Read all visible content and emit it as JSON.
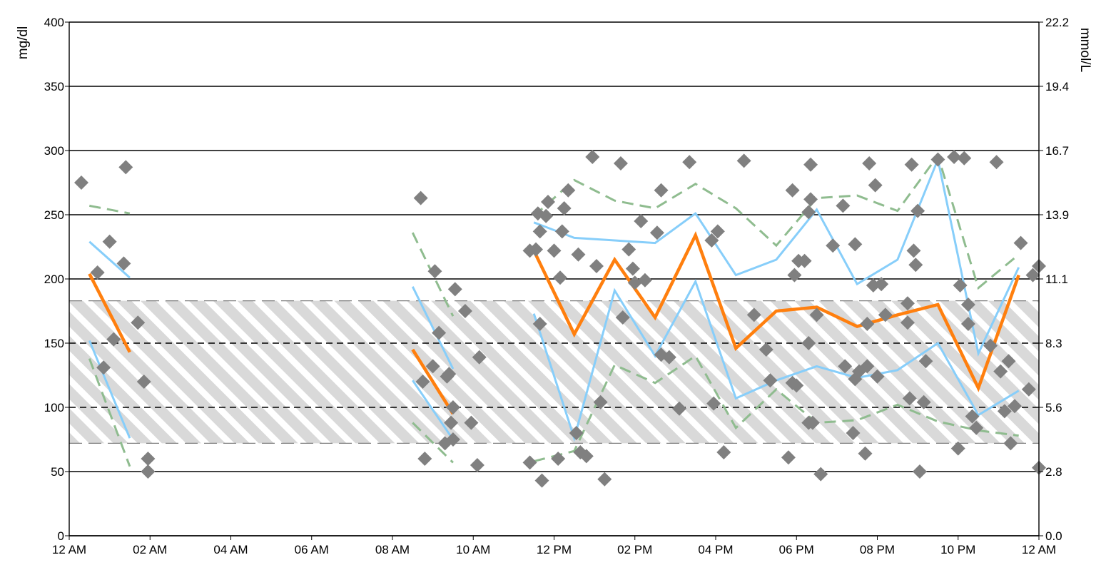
{
  "chart_data": {
    "type": "scatter",
    "left_axis": {
      "label": "mg/dl",
      "ylim": [
        0,
        400
      ],
      "ticks": [
        0,
        50,
        100,
        150,
        200,
        250,
        300,
        350,
        400
      ],
      "tick_labels": [
        "0",
        "50",
        "100",
        "150",
        "200",
        "250",
        "300",
        "350",
        "400"
      ]
    },
    "right_axis": {
      "label": "mmol/L",
      "ticks": [
        0,
        50,
        100,
        150,
        200,
        250,
        300,
        350,
        400
      ],
      "tick_labels": [
        "0.0",
        "2.8",
        "5.6",
        "8.3",
        "11.1",
        "13.9",
        "16.7",
        "19.4",
        "22.2"
      ]
    },
    "x_axis": {
      "xlim": [
        0,
        24
      ],
      "ticks": [
        0,
        2,
        4,
        6,
        8,
        10,
        12,
        14,
        16,
        18,
        20,
        22,
        24
      ],
      "tick_labels": [
        "12 AM",
        "02 AM",
        "04 AM",
        "06 AM",
        "08 AM",
        "10 AM",
        "12 PM",
        "02 PM",
        "04 PM",
        "06 PM",
        "08 PM",
        "10 PM",
        "12 AM"
      ]
    },
    "grid": true,
    "target_range": [
      72,
      183
    ],
    "colors": {
      "median": "#ff7f0e",
      "quartile": "#87cefa",
      "percentile": "#8fbc8f",
      "points": "#808080",
      "band_fill": "#d9d9d9",
      "band_hatch": "#ffffff",
      "band_edge": "#808080"
    },
    "series": [
      {
        "role": "median",
        "style": "solid-thick",
        "segments": [
          [
            [
              0.5,
              204
            ],
            [
              1.5,
              143
            ]
          ],
          [
            [
              8.5,
              145
            ],
            [
              9.5,
              95
            ]
          ],
          [
            [
              11.5,
              222
            ],
            [
              12.5,
              157
            ],
            [
              13.5,
              215
            ],
            [
              14.5,
              170
            ],
            [
              15.5,
              234
            ],
            [
              16.5,
              146
            ],
            [
              17.5,
              175
            ],
            [
              18.5,
              178
            ],
            [
              19.5,
              163
            ],
            [
              20.5,
              172
            ],
            [
              21.5,
              180
            ],
            [
              22.5,
              115
            ],
            [
              23.5,
              203
            ]
          ]
        ]
      },
      {
        "role": "upper-quartile",
        "style": "solid",
        "segments": [
          [
            [
              0.5,
              229
            ],
            [
              1.5,
              201
            ]
          ],
          [
            [
              8.5,
              194
            ],
            [
              9.5,
              130
            ]
          ],
          [
            [
              11.5,
              244
            ],
            [
              12.5,
              232
            ],
            [
              13.5,
              230
            ],
            [
              14.5,
              228
            ],
            [
              15.5,
              251
            ],
            [
              16.5,
              203
            ],
            [
              17.5,
              215
            ],
            [
              18.5,
              254
            ],
            [
              19.5,
              196
            ],
            [
              20.5,
              215
            ],
            [
              21.5,
              293
            ],
            [
              22.5,
              142
            ],
            [
              23.5,
              209
            ]
          ]
        ]
      },
      {
        "role": "lower-quartile",
        "style": "solid",
        "segments": [
          [
            [
              0.5,
              152
            ],
            [
              1.5,
              76
            ]
          ],
          [
            [
              8.5,
              121
            ],
            [
              9.5,
              75
            ]
          ],
          [
            [
              11.5,
              173
            ],
            [
              12.5,
              76
            ],
            [
              13.5,
              191
            ],
            [
              14.5,
              140
            ],
            [
              15.5,
              198
            ],
            [
              16.5,
              107
            ],
            [
              17.5,
              121
            ],
            [
              18.5,
              132
            ],
            [
              19.5,
              123
            ],
            [
              20.5,
              129
            ],
            [
              21.5,
              150
            ],
            [
              22.5,
              94
            ],
            [
              23.5,
              113
            ]
          ]
        ]
      },
      {
        "role": "upper-percentile",
        "style": "dashed",
        "segments": [
          [
            [
              0.5,
              257
            ],
            [
              1.5,
              251
            ]
          ],
          [
            [
              8.5,
              236
            ],
            [
              9.5,
              171
            ]
          ],
          [
            [
              11.5,
              249
            ],
            [
              12.5,
              277
            ],
            [
              13.5,
              261
            ],
            [
              14.5,
              255
            ],
            [
              15.5,
              274
            ],
            [
              16.5,
              255
            ],
            [
              17.5,
              226
            ],
            [
              18.5,
              263
            ],
            [
              19.5,
              265
            ],
            [
              20.5,
              253
            ],
            [
              21.5,
              296
            ],
            [
              22.5,
              193
            ],
            [
              23.5,
              219
            ]
          ]
        ]
      },
      {
        "role": "lower-percentile",
        "style": "dashed",
        "segments": [
          [
            [
              0.5,
              138
            ],
            [
              1.5,
              54
            ]
          ],
          [
            [
              8.5,
              88
            ],
            [
              9.5,
              57
            ]
          ],
          [
            [
              11.5,
              58
            ],
            [
              12.5,
              66
            ],
            [
              13.5,
              133
            ],
            [
              14.5,
              119
            ],
            [
              15.5,
              140
            ],
            [
              16.5,
              84
            ],
            [
              17.5,
              114
            ],
            [
              18.5,
              88
            ],
            [
              19.5,
              90
            ],
            [
              20.5,
              102
            ],
            [
              21.5,
              89
            ],
            [
              22.5,
              82
            ],
            [
              23.5,
              78
            ]
          ]
        ]
      }
    ],
    "points": [
      [
        0.3,
        275
      ],
      [
        0.7,
        205
      ],
      [
        0.85,
        131
      ],
      [
        1.0,
        229
      ],
      [
        1.1,
        153
      ],
      [
        1.35,
        212
      ],
      [
        1.4,
        287
      ],
      [
        1.7,
        166
      ],
      [
        1.85,
        120
      ],
      [
        1.95,
        60
      ],
      [
        1.95,
        50
      ],
      [
        8.7,
        263
      ],
      [
        8.75,
        120
      ],
      [
        8.8,
        60
      ],
      [
        9.0,
        132
      ],
      [
        9.05,
        206
      ],
      [
        9.15,
        158
      ],
      [
        9.3,
        72
      ],
      [
        9.35,
        124
      ],
      [
        9.4,
        126
      ],
      [
        9.45,
        88
      ],
      [
        9.5,
        100
      ],
      [
        9.5,
        75
      ],
      [
        9.55,
        192
      ],
      [
        9.8,
        175
      ],
      [
        9.95,
        88
      ],
      [
        10.1,
        55
      ],
      [
        10.15,
        139
      ],
      [
        11.4,
        57
      ],
      [
        11.4,
        222
      ],
      [
        11.55,
        223
      ],
      [
        11.6,
        251
      ],
      [
        11.65,
        237
      ],
      [
        11.65,
        165
      ],
      [
        11.7,
        43
      ],
      [
        11.8,
        249
      ],
      [
        11.85,
        260
      ],
      [
        12.0,
        222
      ],
      [
        12.1,
        60
      ],
      [
        12.15,
        201
      ],
      [
        12.2,
        237
      ],
      [
        12.25,
        255
      ],
      [
        12.35,
        269
      ],
      [
        12.55,
        80
      ],
      [
        12.6,
        219
      ],
      [
        12.65,
        65
      ],
      [
        12.8,
        62
      ],
      [
        12.95,
        295
      ],
      [
        13.05,
        210
      ],
      [
        13.15,
        104
      ],
      [
        13.25,
        44
      ],
      [
        13.65,
        290
      ],
      [
        13.7,
        170
      ],
      [
        13.85,
        223
      ],
      [
        13.95,
        208
      ],
      [
        14.0,
        197
      ],
      [
        14.15,
        245
      ],
      [
        14.25,
        199
      ],
      [
        14.55,
        236
      ],
      [
        14.65,
        141
      ],
      [
        14.65,
        269
      ],
      [
        14.85,
        139
      ],
      [
        15.1,
        99
      ],
      [
        15.35,
        291
      ],
      [
        15.9,
        230
      ],
      [
        15.95,
        103
      ],
      [
        16.05,
        237
      ],
      [
        16.2,
        65
      ],
      [
        16.7,
        292
      ],
      [
        16.95,
        172
      ],
      [
        17.25,
        145
      ],
      [
        17.35,
        121
      ],
      [
        17.8,
        61
      ],
      [
        17.9,
        269
      ],
      [
        17.9,
        119
      ],
      [
        17.95,
        203
      ],
      [
        18.0,
        117
      ],
      [
        18.05,
        214
      ],
      [
        18.2,
        214
      ],
      [
        18.3,
        88
      ],
      [
        18.3,
        150
      ],
      [
        18.3,
        252
      ],
      [
        18.35,
        289
      ],
      [
        18.35,
        262
      ],
      [
        18.4,
        88
      ],
      [
        18.5,
        172
      ],
      [
        18.6,
        48
      ],
      [
        18.9,
        226
      ],
      [
        19.15,
        257
      ],
      [
        19.2,
        132
      ],
      [
        19.4,
        80
      ],
      [
        19.45,
        122
      ],
      [
        19.45,
        227
      ],
      [
        19.55,
        128
      ],
      [
        19.75,
        132
      ],
      [
        19.7,
        64
      ],
      [
        19.75,
        165
      ],
      [
        19.8,
        290
      ],
      [
        19.9,
        195
      ],
      [
        19.95,
        273
      ],
      [
        20.0,
        124
      ],
      [
        20.1,
        196
      ],
      [
        20.2,
        172
      ],
      [
        20.75,
        181
      ],
      [
        20.75,
        166
      ],
      [
        20.8,
        107
      ],
      [
        20.85,
        289
      ],
      [
        20.9,
        222
      ],
      [
        20.95,
        211
      ],
      [
        21.0,
        253
      ],
      [
        21.05,
        50
      ],
      [
        21.15,
        104
      ],
      [
        21.2,
        136
      ],
      [
        21.5,
        293
      ],
      [
        21.9,
        295
      ],
      [
        22.0,
        68
      ],
      [
        22.05,
        195
      ],
      [
        22.15,
        294
      ],
      [
        22.25,
        180
      ],
      [
        22.25,
        165
      ],
      [
        22.35,
        93
      ],
      [
        22.45,
        84
      ],
      [
        22.8,
        148
      ],
      [
        22.95,
        291
      ],
      [
        23.05,
        128
      ],
      [
        23.15,
        97
      ],
      [
        23.25,
        136
      ],
      [
        23.3,
        72
      ],
      [
        23.4,
        101
      ],
      [
        23.55,
        228
      ],
      [
        23.75,
        114
      ],
      [
        23.85,
        203
      ],
      [
        24.0,
        210
      ],
      [
        24.0,
        53
      ]
    ]
  }
}
